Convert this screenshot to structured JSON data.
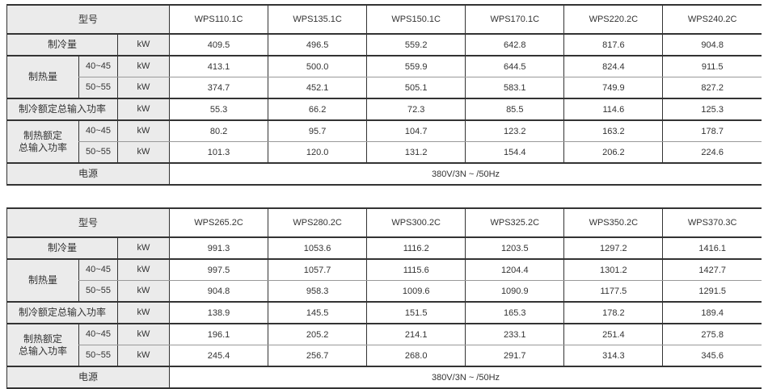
{
  "labels": {
    "model": "型号",
    "cooling_capacity": "制冷量",
    "heating_capacity": "制热量",
    "cooling_rated_total_input_power": "制冷额定总输入功率",
    "heating_rated_total_input_power_line1": "制热额定",
    "heating_rated_total_input_power_line2": "总输入功率",
    "power_supply": "电源",
    "range_40_45": "40~45",
    "range_50_55": "50~55",
    "unit_kw": "kW"
  },
  "colors": {
    "header_bg": "#ebebeb",
    "border_major": "#333333",
    "border_minor": "#999999",
    "text": "#333333"
  },
  "tables": [
    {
      "models": [
        "WPS110.1C",
        "WPS135.1C",
        "WPS150.1C",
        "WPS170.1C",
        "WPS220.2C",
        "WPS240.2C"
      ],
      "cooling_capacity": [
        "409.5",
        "496.5",
        "559.2",
        "642.8",
        "817.6",
        "904.8"
      ],
      "heating_capacity_40_45": [
        "413.1",
        "500.0",
        "559.9",
        "644.5",
        "824.4",
        "911.5"
      ],
      "heating_capacity_50_55": [
        "374.7",
        "452.1",
        "505.1",
        "583.1",
        "749.9",
        "827.2"
      ],
      "cooling_rated_input": [
        "55.3",
        "66.2",
        "72.3",
        "85.5",
        "114.6",
        "125.3"
      ],
      "heating_rated_input_40_45": [
        "80.2",
        "95.7",
        "104.7",
        "123.2",
        "163.2",
        "178.7"
      ],
      "heating_rated_input_50_55": [
        "101.3",
        "120.0",
        "131.2",
        "154.4",
        "206.2",
        "224.6"
      ],
      "power_supply_value": "380V/3N ~ /50Hz"
    },
    {
      "models": [
        "WPS265.2C",
        "WPS280.2C",
        "WPS300.2C",
        "WPS325.2C",
        "WPS350.2C",
        "WPS370.3C"
      ],
      "cooling_capacity": [
        "991.3",
        "1053.6",
        "1116.2",
        "1203.5",
        "1297.2",
        "1416.1"
      ],
      "heating_capacity_40_45": [
        "997.5",
        "1057.7",
        "1115.6",
        "1204.4",
        "1301.2",
        "1427.7"
      ],
      "heating_capacity_50_55": [
        "904.8",
        "958.3",
        "1009.6",
        "1090.9",
        "1177.5",
        "1291.5"
      ],
      "cooling_rated_input": [
        "138.9",
        "145.5",
        "151.5",
        "165.3",
        "178.2",
        "189.4"
      ],
      "heating_rated_input_40_45": [
        "196.1",
        "205.2",
        "214.1",
        "233.1",
        "251.4",
        "275.8"
      ],
      "heating_rated_input_50_55": [
        "245.4",
        "256.7",
        "268.0",
        "291.7",
        "314.3",
        "345.6"
      ],
      "power_supply_value": "380V/3N ~ /50Hz"
    }
  ]
}
